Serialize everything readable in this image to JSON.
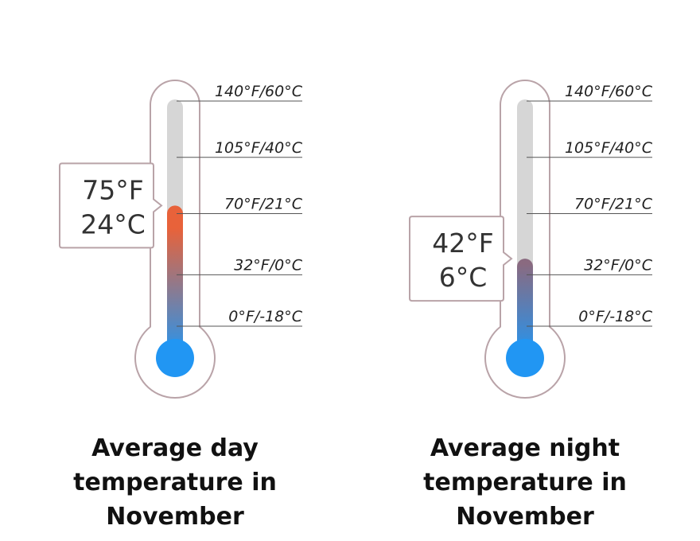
{
  "chart_data": [
    {
      "type": "thermometer",
      "value_f": 75,
      "value_c": 24,
      "label_f": "75°F",
      "label_c": "24°C",
      "scale_f": [
        0,
        140
      ],
      "ticks": [
        {
          "value_f": 140,
          "label": "140°F/60°C"
        },
        {
          "value_f": 105,
          "label": "105°F/40°C"
        },
        {
          "value_f": 70,
          "label": "70°F/21°C"
        },
        {
          "value_f": 32,
          "label": "32°F/0°C"
        },
        {
          "value_f": 0,
          "label": "0°F/-18°C"
        }
      ],
      "caption": [
        "Average day",
        "temperature in",
        "November"
      ],
      "fill_color_top": "#e8623a",
      "fill_color_bottom": "#2196f3"
    },
    {
      "type": "thermometer",
      "value_f": 42,
      "value_c": 6,
      "label_f": "42°F",
      "label_c": "6°C",
      "scale_f": [
        0,
        140
      ],
      "ticks": [
        {
          "value_f": 140,
          "label": "140°F/60°C"
        },
        {
          "value_f": 105,
          "label": "105°F/40°C"
        },
        {
          "value_f": 70,
          "label": "70°F/21°C"
        },
        {
          "value_f": 32,
          "label": "32°F/0°C"
        },
        {
          "value_f": 0,
          "label": "0°F/-18°C"
        }
      ],
      "caption": [
        "Average night",
        "temperature in",
        "November"
      ],
      "fill_color_top": "#8a6a80",
      "fill_color_bottom": "#2196f3"
    }
  ],
  "colors": {
    "outline": "#b9a3a8",
    "track": "#d6d6d6",
    "gridline": "#555555",
    "bulb": "#2196f3",
    "callout_border": "#b9a3a8"
  }
}
